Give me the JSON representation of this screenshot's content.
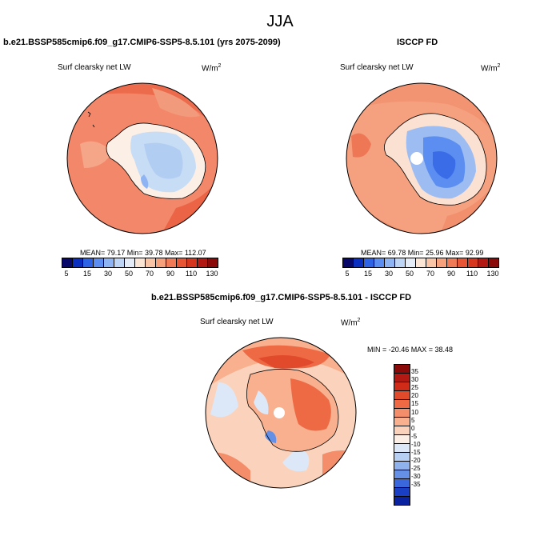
{
  "season": "JJA",
  "panels": {
    "model": {
      "title": "b.e21.BSSP585cmip6.f09_g17.CMIP6-SSP5-8.5.101 (yrs 2075-2099)",
      "variable": "Surf clearsky net LW",
      "units": "W/m",
      "units_sup": "2",
      "stats": "MEAN=  79.17  Min=  39.78  Max= 112.07"
    },
    "obs": {
      "title": "ISCCP FD",
      "variable": "Surf clearsky net LW",
      "units": "W/m",
      "units_sup": "2",
      "stats": "MEAN=  69.78  Min=  25.96  Max=  92.99"
    },
    "diff": {
      "title": "b.e21.BSSP585cmip6.f09_g17.CMIP6-SSP5-8.5.101 - ISCCP FD",
      "variable": "Surf clearsky net LW",
      "units": "W/m",
      "units_sup": "2",
      "stats": "MIN = -20.46 MAX =  38.48"
    }
  },
  "colorbar_abs": {
    "labels": [
      "5",
      "15",
      "30",
      "50",
      "70",
      "90",
      "110",
      "130"
    ],
    "colors": [
      "#08086b",
      "#0a2fc0",
      "#2e63e6",
      "#5b8ef0",
      "#8fb4f4",
      "#bfd5f6",
      "#e4ecf8",
      "#fbe5d4",
      "#f9c5a6",
      "#f6a07c",
      "#f07a55",
      "#e85535",
      "#d6361d",
      "#b21912",
      "#8a0a0a"
    ]
  },
  "colorbar_diff": {
    "labels": [
      "35",
      "30",
      "25",
      "20",
      "15",
      "10",
      "5",
      "0",
      "-5",
      "-10",
      "-15",
      "-20",
      "-25",
      "-30",
      "-35"
    ],
    "colors": [
      "#8a0a0a",
      "#b21912",
      "#d02a18",
      "#e24a2c",
      "#ee6a45",
      "#f48e6a",
      "#f8b08f",
      "#fbd3bc",
      "#fcefe5",
      "#dce8f7",
      "#b6cff2",
      "#8fb2ed",
      "#6690e6",
      "#3b67dc",
      "#1a3fc4",
      "#0a22a0"
    ]
  }
}
